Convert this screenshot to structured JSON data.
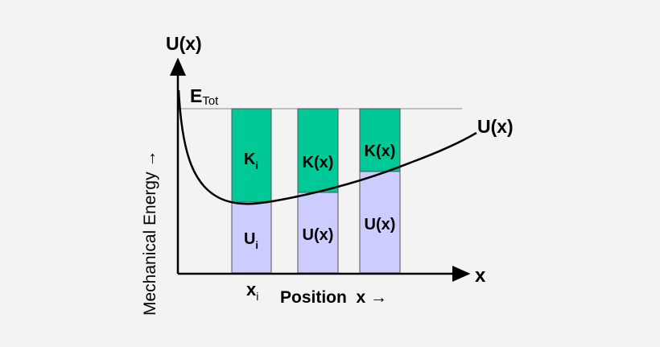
{
  "labels": {
    "y_axis_top": "U(x)",
    "e_tot_main": "E",
    "e_tot_sub": "Tot",
    "curve_label": "U(x)",
    "x_axis_end": "x",
    "y_axis_title": "Mechanical Energy →",
    "x_i_main": "x",
    "x_i_sub": "i",
    "x_axis_title": "Position  x →"
  },
  "bars": [
    {
      "kinetic_main": "K",
      "kinetic_sub": "i",
      "potential_main": "U",
      "potential_sub": "i"
    },
    {
      "kinetic_main": "K(x)",
      "kinetic_sub": "",
      "potential_main": "U(x)",
      "potential_sub": ""
    },
    {
      "kinetic_main": "K(x)",
      "kinetic_sub": "",
      "potential_main": "U(x)",
      "potential_sub": ""
    }
  ],
  "colors": {
    "kinetic": "#00c896",
    "potential": "#ccccff",
    "background": "#f3f3f3"
  }
}
